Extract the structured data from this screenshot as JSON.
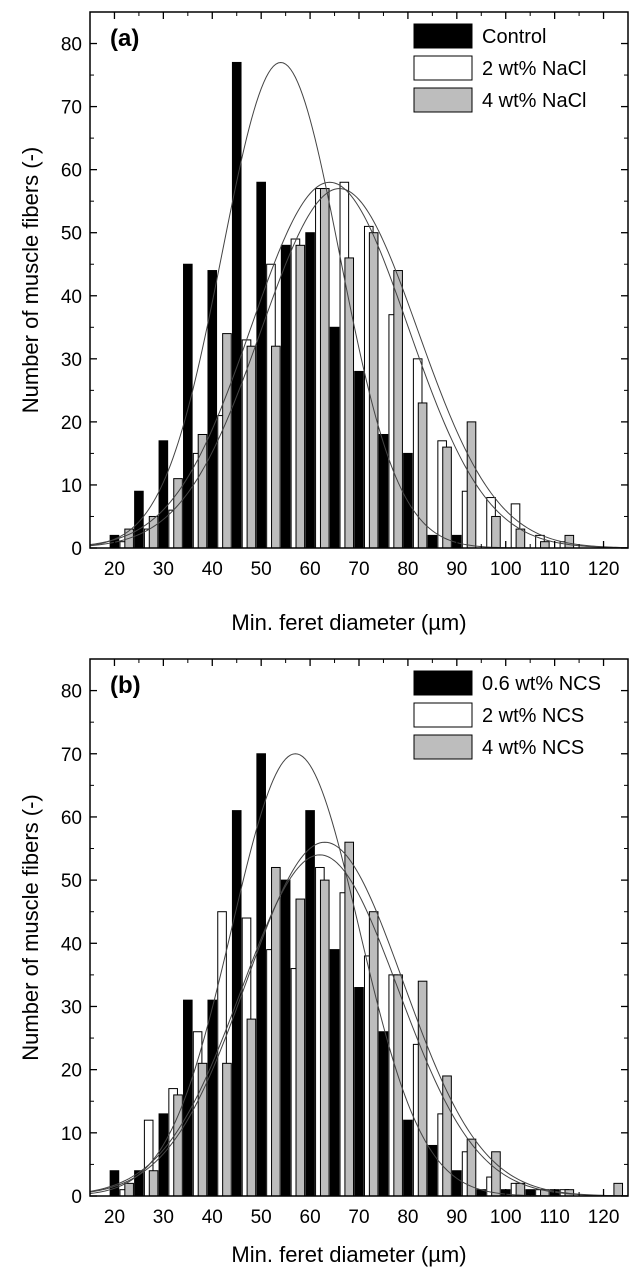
{
  "colors": {
    "series_1": "#000000",
    "series_2": "#ffffff",
    "series_3": "#bdbdbd",
    "axis": "#000000",
    "fit_curve": "#444444"
  },
  "chart_data": [
    {
      "type": "bar",
      "panel_label": "(a)",
      "xlabel": "Min. feret diameter (µm)",
      "ylabel": "Number of muscle fibers (-)",
      "xlim": [
        15,
        125
      ],
      "ylim": [
        0,
        85
      ],
      "x_ticks": [
        20,
        30,
        40,
        50,
        60,
        70,
        80,
        90,
        100,
        110,
        120
      ],
      "y_ticks": [
        0,
        10,
        20,
        30,
        40,
        50,
        60,
        70,
        80
      ],
      "legend": "top-right",
      "series": [
        {
          "name": "Control",
          "x": [
            20,
            25,
            30,
            35,
            40,
            45,
            50,
            55,
            60,
            65,
            70,
            75,
            80,
            85,
            90,
            95
          ],
          "values": [
            2,
            9,
            17,
            45,
            44,
            77,
            58,
            48,
            50,
            35,
            28,
            18,
            15,
            2,
            2,
            0
          ],
          "fit": {
            "mean": 54,
            "sd": 12,
            "peak": 77
          }
        },
        {
          "name": "2 wt% NaCl",
          "x": [
            22,
            27,
            32,
            37,
            42,
            47,
            52,
            57,
            62,
            67,
            72,
            77,
            82,
            87,
            92,
            97,
            102,
            107,
            112
          ],
          "values": [
            1,
            3,
            6,
            15,
            21,
            33,
            45,
            49,
            57,
            58,
            51,
            37,
            30,
            17,
            9,
            8,
            7,
            2,
            1
          ],
          "fit": {
            "mean": 66,
            "sd": 16,
            "peak": 57
          }
        },
        {
          "name": "4 wt% NaCl",
          "x": [
            23,
            28,
            33,
            38,
            43,
            48,
            53,
            58,
            63,
            68,
            73,
            78,
            83,
            88,
            93,
            98,
            103,
            108,
            113
          ],
          "values": [
            3,
            5,
            11,
            18,
            34,
            32,
            32,
            48,
            57,
            46,
            50,
            44,
            23,
            16,
            20,
            5,
            3,
            1,
            2
          ],
          "fit": {
            "mean": 64,
            "sd": 16,
            "peak": 58
          }
        }
      ]
    },
    {
      "type": "bar",
      "panel_label": "(b)",
      "xlabel": "Min. feret diameter (µm)",
      "ylabel": "Number of muscle fibers (-)",
      "xlim": [
        15,
        125
      ],
      "ylim": [
        0,
        85
      ],
      "x_ticks": [
        20,
        30,
        40,
        50,
        60,
        70,
        80,
        90,
        100,
        110,
        120
      ],
      "y_ticks": [
        0,
        10,
        20,
        30,
        40,
        50,
        60,
        70,
        80
      ],
      "legend": "top-right",
      "series": [
        {
          "name": "0.6 wt% NCS",
          "x": [
            20,
            25,
            30,
            35,
            40,
            45,
            50,
            55,
            60,
            65,
            70,
            75,
            80,
            85,
            90,
            95,
            100,
            105,
            110
          ],
          "values": [
            4,
            4,
            13,
            31,
            31,
            61,
            70,
            50,
            61,
            39,
            33,
            26,
            12,
            8,
            4,
            1,
            1,
            1,
            1
          ],
          "fit": {
            "mean": 57,
            "sd": 13,
            "peak": 70
          }
        },
        {
          "name": "2 wt% NCS",
          "x": [
            22,
            27,
            32,
            37,
            42,
            47,
            52,
            57,
            62,
            67,
            72,
            77,
            82,
            87,
            92,
            97,
            102,
            107,
            112
          ],
          "values": [
            1,
            12,
            17,
            26,
            45,
            44,
            39,
            36,
            52,
            48,
            38,
            35,
            24,
            13,
            7,
            3,
            2,
            1,
            1
          ],
          "fit": {
            "mean": 62,
            "sd": 16,
            "peak": 54
          }
        },
        {
          "name": "4 wt% NCS",
          "x": [
            23,
            28,
            33,
            38,
            43,
            48,
            53,
            58,
            63,
            68,
            73,
            78,
            83,
            88,
            93,
            98,
            103,
            108,
            113,
            118,
            123
          ],
          "values": [
            2,
            4,
            16,
            21,
            21,
            28,
            52,
            47,
            50,
            56,
            45,
            35,
            34,
            19,
            9,
            7,
            2,
            1,
            1,
            0,
            2
          ],
          "fit": {
            "mean": 63,
            "sd": 16,
            "peak": 56
          }
        }
      ]
    }
  ]
}
